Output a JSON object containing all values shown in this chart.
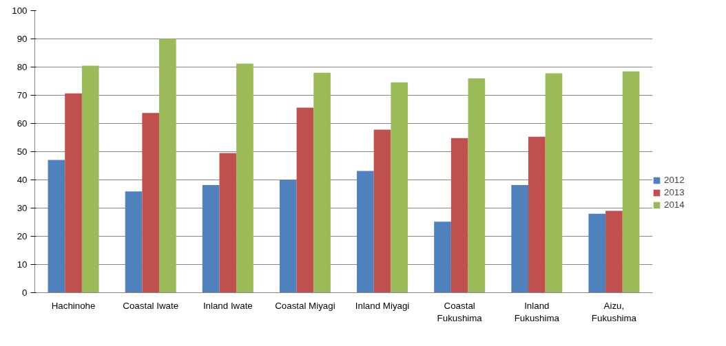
{
  "chart_data": {
    "type": "bar",
    "categories": [
      "Hachinohe",
      "Coastal Iwate",
      "Inland Iwate",
      "Coastal Miyagi",
      "Inland Miyagi",
      "Coastal\nFukushima",
      "Inland\nFukushima",
      "Aizu,\nFukushima"
    ],
    "series": [
      {
        "name": "2012",
        "color": "#4f81bd",
        "values": [
          47.1,
          35.9,
          38.2,
          40.0,
          43.2,
          25.2,
          38.2,
          28.0
        ]
      },
      {
        "name": "2013",
        "color": "#c0504d",
        "values": [
          70.7,
          63.7,
          49.5,
          65.6,
          57.8,
          54.8,
          55.3,
          29.0
        ]
      },
      {
        "name": "2014",
        "color": "#9bbb59",
        "values": [
          80.5,
          90.0,
          81.2,
          78.0,
          74.6,
          76.0,
          77.8,
          78.5
        ]
      }
    ],
    "ylim": [
      0,
      100
    ],
    "yticks": [
      0,
      10,
      20,
      30,
      40,
      50,
      60,
      70,
      80,
      90,
      100
    ],
    "grid": "y",
    "legend": "right"
  }
}
